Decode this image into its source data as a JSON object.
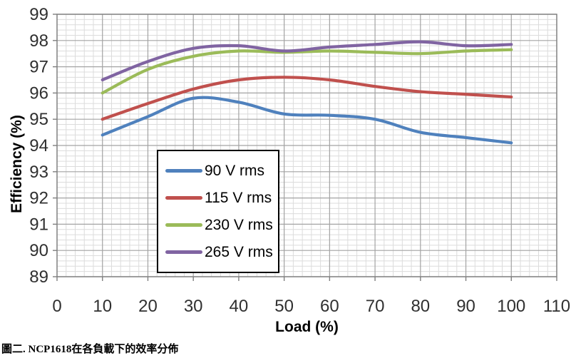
{
  "caption": "圖二. NCP1618在各負載下的效率分佈",
  "chart_data": {
    "type": "line",
    "xlabel": "Load (%)",
    "ylabel": "Efficiency (%)",
    "xlim": [
      0,
      110
    ],
    "ylim": [
      89,
      99
    ],
    "x_ticks": [
      0,
      10,
      20,
      30,
      40,
      50,
      60,
      70,
      80,
      90,
      100,
      110
    ],
    "y_ticks": [
      89,
      90,
      91,
      92,
      93,
      94,
      95,
      96,
      97,
      98,
      99
    ],
    "x_minor_step": 2,
    "y_minor_step": 0.2,
    "grid": "major+minor",
    "legend_position": "inside-left box",
    "x": [
      10,
      20,
      30,
      40,
      50,
      60,
      70,
      80,
      90,
      100
    ],
    "series": [
      {
        "name": "90 V rms",
        "color": "#4F81BD",
        "values": [
          94.4,
          95.1,
          95.8,
          95.65,
          95.2,
          95.15,
          95.0,
          94.5,
          94.3,
          94.1
        ]
      },
      {
        "name": "115 V rms",
        "color": "#C0504D",
        "values": [
          95.0,
          95.6,
          96.15,
          96.5,
          96.6,
          96.5,
          96.25,
          96.05,
          95.95,
          95.85
        ]
      },
      {
        "name": "230 V rms",
        "color": "#9BBB59",
        "values": [
          96.0,
          96.9,
          97.4,
          97.6,
          97.55,
          97.6,
          97.55,
          97.5,
          97.6,
          97.65
        ]
      },
      {
        "name": "265 V rms",
        "color": "#8064A2",
        "values": [
          96.5,
          97.2,
          97.7,
          97.8,
          97.6,
          97.75,
          97.85,
          97.95,
          97.8,
          97.85
        ]
      }
    ],
    "style": {
      "minor_grid_color": "#DCDCDC",
      "major_grid_color": "#A3A3A3",
      "border_color": "#7F7F7F",
      "tick_text_color": "#303030",
      "line_width": 4.2
    }
  }
}
